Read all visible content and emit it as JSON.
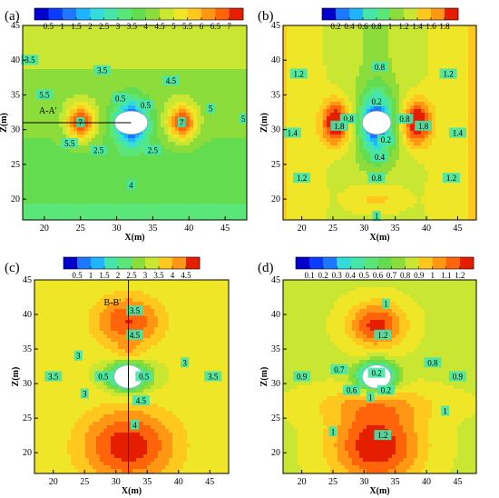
{
  "colors": {
    "scale": [
      "#0000cc",
      "#0a3cff",
      "#1e78ff",
      "#1eb4ff",
      "#32dcdc",
      "#46e6aa",
      "#5ae678",
      "#64dc50",
      "#8cdc3c",
      "#c8e632",
      "#f0e628",
      "#ffc81e",
      "#ff9614",
      "#ff640a",
      "#e61e00"
    ],
    "background": "#5ad755",
    "hole": "#ffffff"
  },
  "chart_data": [
    {
      "panel": "(a)",
      "type": "contour",
      "xlabel": "X(m)",
      "ylabel": "Z(m)",
      "xlim": [
        17,
        48
      ],
      "ylim": [
        17,
        45
      ],
      "xticks": [
        "20",
        "25",
        "30",
        "35",
        "40",
        "45"
      ],
      "yticks": [
        "20",
        "25",
        "30",
        "35",
        "40",
        "45"
      ],
      "colorbar": [
        "0.5",
        "1",
        "1.5",
        "2",
        "2.5",
        "3",
        "3.5",
        "4",
        "4.5",
        "5",
        "5.5",
        "6",
        "6.5",
        "7"
      ],
      "contour_labels": [
        "3.5",
        "3.5",
        "4.5",
        "5",
        "5",
        "0.5",
        "0.5",
        "5.5",
        "5.5",
        "7",
        "7",
        "2.5",
        "2.5",
        "4"
      ],
      "section_line": {
        "label": "A-A'",
        "orientation": "horizontal",
        "at": 31
      },
      "scale_max": 7.3
    },
    {
      "panel": "(b)",
      "type": "contour",
      "xlabel": "X(m)",
      "ylabel": "Z(m)",
      "xlim": [
        17,
        48
      ],
      "ylim": [
        17,
        45
      ],
      "xticks": [
        "20",
        "25",
        "30",
        "35",
        "40",
        "45"
      ],
      "yticks": [
        "20",
        "25",
        "30",
        "35",
        "40",
        "45"
      ],
      "colorbar": [
        "0.2",
        "0.4",
        "0.6",
        "0.8",
        "1",
        "1.2",
        "1.4",
        "1.6",
        "1.8"
      ],
      "contour_labels": [
        "1.2",
        "1.2",
        "0.8",
        "0.2",
        "0.2",
        "0.8",
        "0.8",
        "1.8",
        "1.8",
        "1.4",
        "1.4",
        "1.2",
        "1.2",
        "0.4",
        "0.8",
        "1"
      ],
      "scale_max": 1.9
    },
    {
      "panel": "(c)",
      "type": "contour",
      "xlabel": "X(m)",
      "ylabel": "Z(m)",
      "xlim": [
        17,
        48
      ],
      "ylim": [
        17,
        45
      ],
      "xticks": [
        "20",
        "25",
        "30",
        "35",
        "40",
        "45"
      ],
      "yticks": [
        "20",
        "25",
        "30",
        "35",
        "40",
        "45"
      ],
      "colorbar": [
        "0.5",
        "1",
        "1.5",
        "2",
        "2.5",
        "3",
        "3.5",
        "4",
        "4.5"
      ],
      "contour_labels": [
        "3.5",
        "4.5",
        "3",
        "3",
        "0.5",
        "0.5",
        "3.5",
        "3.5",
        "3",
        "4.5",
        "4"
      ],
      "section_line": {
        "label": "B-B'",
        "orientation": "vertical",
        "at": 32
      },
      "scale_max": 4.8
    },
    {
      "panel": "(d)",
      "type": "contour",
      "xlabel": "X(m)",
      "ylabel": "Z(m)",
      "xlim": [
        17,
        48
      ],
      "ylim": [
        17,
        45
      ],
      "xticks": [
        "20",
        "25",
        "30",
        "35",
        "40",
        "45"
      ],
      "yticks": [
        "20",
        "25",
        "30",
        "35",
        "40",
        "45"
      ],
      "colorbar": [
        "0.1",
        "0.2",
        "0.3",
        "0.4",
        "0.5",
        "0.6",
        "0.7",
        "0.8",
        "0.9",
        "1",
        "1.1",
        "1.2"
      ],
      "contour_labels": [
        "1",
        "1.2",
        "0.2",
        "0.2",
        "0.7",
        "0.8",
        "0.9",
        "0.9",
        "1",
        "1",
        "1.2",
        "0.6",
        "1"
      ],
      "scale_max": 1.3
    }
  ]
}
